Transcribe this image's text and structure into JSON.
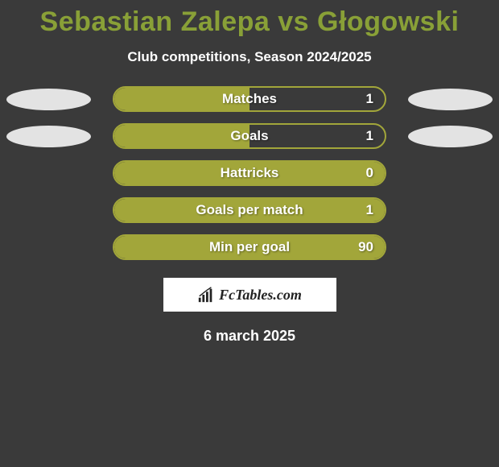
{
  "title": "Sebastian Zalepa vs Głogowski",
  "subtitle": "Club competitions, Season 2024/2025",
  "date": "6 march 2025",
  "branding": "FcTables.com",
  "colors": {
    "title": "#89a037",
    "bar_fill": "#a2a63a",
    "bar_border": "#a2a63a",
    "ellipse": "#e3e3e3",
    "background": "#3a3a3a",
    "text": "#ffffff",
    "branding_bg": "#ffffff",
    "branding_text": "#222222"
  },
  "stats": [
    {
      "label": "Matches",
      "value": "1",
      "fill_pct": 50,
      "show_ellipses": true
    },
    {
      "label": "Goals",
      "value": "1",
      "fill_pct": 50,
      "show_ellipses": true
    },
    {
      "label": "Hattricks",
      "value": "0",
      "fill_pct": 100,
      "show_ellipses": false
    },
    {
      "label": "Goals per match",
      "value": "1",
      "fill_pct": 100,
      "show_ellipses": false
    },
    {
      "label": "Min per goal",
      "value": "90",
      "fill_pct": 100,
      "show_ellipses": false
    }
  ]
}
